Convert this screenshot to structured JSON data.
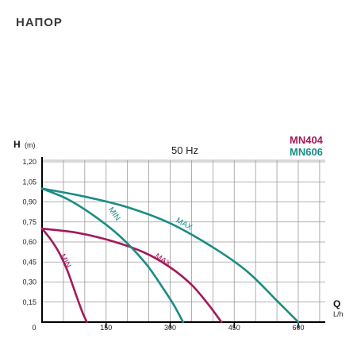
{
  "page": {
    "title": "НАПОР"
  },
  "chart_data": {
    "type": "line",
    "title": "50 Hz",
    "ylabel": "H",
    "yunit": "(m)",
    "xlabel": "Q",
    "xunit": "L/h",
    "xlim": [
      0,
      700
    ],
    "ylim": [
      0,
      1.2
    ],
    "x_ticks": [
      0,
      150,
      300,
      450,
      600
    ],
    "x_tick_labels": [
      "0",
      "150",
      "300",
      "450",
      "600"
    ],
    "y_ticks": [
      0.15,
      0.3,
      0.45,
      0.6,
      0.75,
      0.9,
      1.05,
      1.2
    ],
    "y_tick_labels": [
      "0,15",
      "0,30",
      "0,45",
      "0,60",
      "0,75",
      "0,90",
      "1,05",
      "1,20"
    ],
    "grid": true,
    "legend": [
      {
        "label": "MN404",
        "color": "#a3195b"
      },
      {
        "label": "MN606",
        "color": "#1a8c85"
      }
    ],
    "series": [
      {
        "name": "MIN",
        "color": "#a3195b",
        "x": [
          0,
          20,
          40,
          60,
          80,
          95,
          105
        ],
        "y": [
          0.7,
          0.62,
          0.52,
          0.38,
          0.2,
          0.07,
          0
        ]
      },
      {
        "name": "MAX",
        "color": "#a3195b",
        "x": [
          0,
          80,
          160,
          240,
          300,
          350,
          390,
          420
        ],
        "y": [
          0.7,
          0.67,
          0.61,
          0.52,
          0.41,
          0.28,
          0.13,
          0
        ]
      },
      {
        "name": "MIN",
        "color": "#1a8c85",
        "x": [
          0,
          60,
          120,
          180,
          240,
          280,
          310,
          330
        ],
        "y": [
          1.0,
          0.92,
          0.8,
          0.65,
          0.45,
          0.27,
          0.12,
          0
        ]
      },
      {
        "name": "MAX",
        "color": "#1a8c85",
        "x": [
          0,
          100,
          200,
          300,
          400,
          480,
          550,
          600
        ],
        "y": [
          1.0,
          0.94,
          0.86,
          0.74,
          0.56,
          0.38,
          0.16,
          0
        ]
      }
    ],
    "annotations": [
      {
        "text": "MIN",
        "series": 0,
        "color": "#a3195b"
      },
      {
        "text": "MAX",
        "series": 1,
        "color": "#a3195b"
      },
      {
        "text": "MIN",
        "series": 2,
        "color": "#1a8c85"
      },
      {
        "text": "MAX",
        "series": 3,
        "color": "#1a8c85"
      }
    ]
  }
}
